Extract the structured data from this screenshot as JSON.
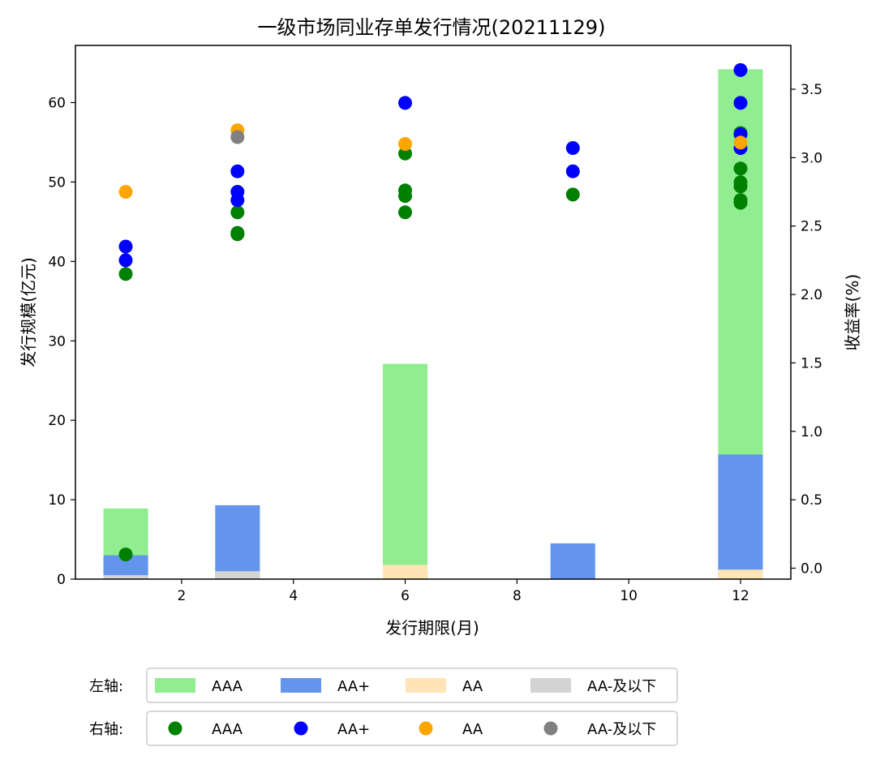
{
  "chart_data": {
    "type": "bar+scatter",
    "title": "一级市场同业存单发行情况(20211129)",
    "xlabel": "发行期限(月)",
    "ylabel_left": "发行规模(亿元)",
    "ylabel_right": "收益率(%)",
    "x_ticks": [
      2,
      4,
      6,
      8,
      10,
      12
    ],
    "y_left_ticks": [
      0,
      10,
      20,
      30,
      40,
      50,
      60
    ],
    "y_right_ticks": [
      "0.0",
      "0.5",
      "1.0",
      "1.5",
      "2.0",
      "2.5",
      "3.0",
      "3.5"
    ],
    "xlim": [
      0.1,
      12.9
    ],
    "y_left_lim": [
      0,
      67.2
    ],
    "y_right_lim": [
      -0.08,
      3.82
    ],
    "bar_width": 0.8,
    "bar_series": [
      {
        "name": "AAA",
        "color": "#90ee90",
        "points": [
          {
            "x": 1,
            "y": 8.9
          },
          {
            "x": 6,
            "y": 27.1
          },
          {
            "x": 12,
            "y": 64.2
          }
        ]
      },
      {
        "name": "AA+",
        "color": "#6495ed",
        "points": [
          {
            "x": 1,
            "y": 3.0
          },
          {
            "x": 3,
            "y": 9.3
          },
          {
            "x": 9,
            "y": 4.5
          },
          {
            "x": 12,
            "y": 15.7
          }
        ]
      },
      {
        "name": "AA",
        "color": "#ffe4b5",
        "points": [
          {
            "x": 6,
            "y": 1.8
          },
          {
            "x": 12,
            "y": 1.2
          }
        ]
      },
      {
        "name": "AA-及以下",
        "color": "#d3d3d3",
        "points": [
          {
            "x": 1,
            "y": 0.5
          },
          {
            "x": 3,
            "y": 1.0
          }
        ]
      }
    ],
    "scatter_series": [
      {
        "name": "AAA",
        "color": "#008000",
        "points": [
          {
            "x": 1,
            "y": 2.15
          },
          {
            "x": 1,
            "y": 0.1
          },
          {
            "x": 3,
            "y": 2.6
          },
          {
            "x": 3,
            "y": 2.45
          },
          {
            "x": 3,
            "y": 2.44
          },
          {
            "x": 6,
            "y": 3.03
          },
          {
            "x": 6,
            "y": 2.76
          },
          {
            "x": 6,
            "y": 2.72
          },
          {
            "x": 6,
            "y": 2.6
          },
          {
            "x": 9,
            "y": 2.73
          },
          {
            "x": 12,
            "y": 3.18
          },
          {
            "x": 12,
            "y": 2.92
          },
          {
            "x": 12,
            "y": 2.82
          },
          {
            "x": 12,
            "y": 2.79
          },
          {
            "x": 12,
            "y": 2.69
          },
          {
            "x": 12,
            "y": 2.67
          }
        ]
      },
      {
        "name": "AA+",
        "color": "#0000ff",
        "points": [
          {
            "x": 1,
            "y": 2.35
          },
          {
            "x": 1,
            "y": 2.25
          },
          {
            "x": 3,
            "y": 2.9
          },
          {
            "x": 3,
            "y": 2.75
          },
          {
            "x": 3,
            "y": 2.69
          },
          {
            "x": 6,
            "y": 3.4
          },
          {
            "x": 9,
            "y": 3.07
          },
          {
            "x": 9,
            "y": 2.9
          },
          {
            "x": 12,
            "y": 3.64
          },
          {
            "x": 12,
            "y": 3.4
          },
          {
            "x": 12,
            "y": 3.17
          },
          {
            "x": 12,
            "y": 3.07
          }
        ]
      },
      {
        "name": "AA",
        "color": "#ffa500",
        "points": [
          {
            "x": 1,
            "y": 2.75
          },
          {
            "x": 3,
            "y": 3.2
          },
          {
            "x": 6,
            "y": 3.1
          },
          {
            "x": 12,
            "y": 3.11
          }
        ]
      },
      {
        "name": "AA-及以下",
        "color": "#808080",
        "points": [
          {
            "x": 3,
            "y": 3.15
          }
        ]
      }
    ],
    "legend": {
      "left_title": "左轴:",
      "right_title": "右轴:",
      "placement": "bottom"
    }
  }
}
